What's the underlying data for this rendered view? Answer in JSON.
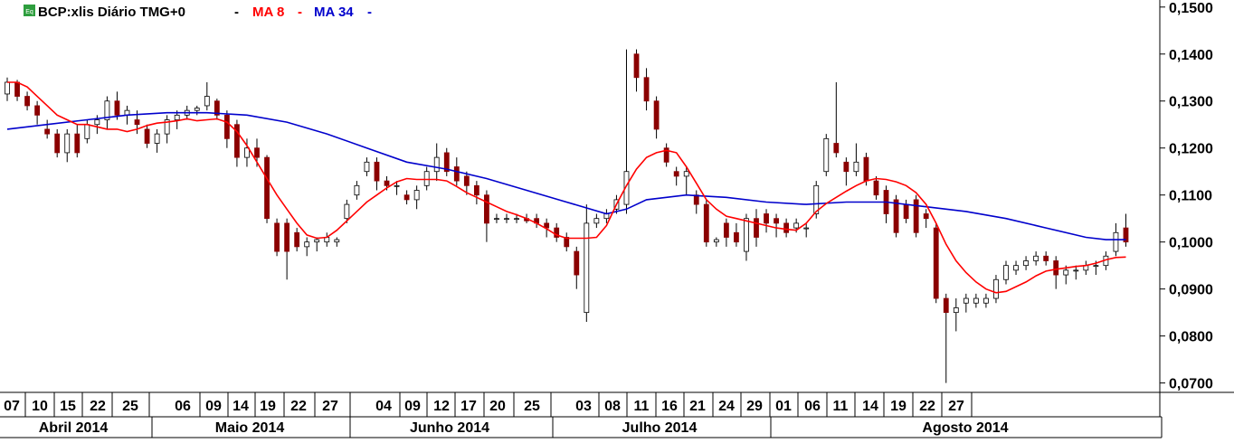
{
  "legend": {
    "badge": "Eq",
    "symbol": "BCP:xlis Diário TMG+0",
    "ma8": "MA 8",
    "ma34": "MA 34",
    "dash": "-"
  },
  "colors": {
    "bull_candle": "#1a8a1a",
    "bear_candle": "#8b0000",
    "ma8": "#ff0000",
    "ma34": "#0000cc",
    "axis": "#000000",
    "badge_bg": "#2e9e3e"
  },
  "chart_data": {
    "type": "candlestick",
    "title": "BCP:xlis Diário TMG+0",
    "ylim": [
      0.068,
      0.1515
    ],
    "y_ticks": [
      "0,0700",
      "0,0800",
      "0,0900",
      "0,1000",
      "0,1100",
      "0,1200",
      "0,1300",
      "0,1400",
      "0,1500"
    ],
    "x_ticks": [
      "07",
      "10",
      "15",
      "22",
      "25",
      "06",
      "09",
      "14",
      "19",
      "22",
      "27",
      "04",
      "09",
      "12",
      "17",
      "20",
      "25",
      "03",
      "08",
      "11",
      "16",
      "21",
      "24",
      "29",
      "01",
      "06",
      "11",
      "14",
      "19",
      "22",
      "27"
    ],
    "months": [
      "Abril 2014",
      "Maio 2014",
      "Junho 2014",
      "Julho 2014",
      "Agosto 2014"
    ],
    "ohlc": [
      [
        0.1315,
        0.135,
        0.13,
        0.134
      ],
      [
        0.134,
        0.1345,
        0.13,
        0.131
      ],
      [
        0.131,
        0.132,
        0.128,
        0.129
      ],
      [
        0.129,
        0.13,
        0.125,
        0.127
      ],
      [
        0.124,
        0.126,
        0.122,
        0.123
      ],
      [
        0.123,
        0.124,
        0.118,
        0.119
      ],
      [
        0.119,
        0.124,
        0.117,
        0.123
      ],
      [
        0.123,
        0.125,
        0.118,
        0.119
      ],
      [
        0.122,
        0.126,
        0.121,
        0.125
      ],
      [
        0.125,
        0.127,
        0.123,
        0.126
      ],
      [
        0.126,
        0.131,
        0.124,
        0.13
      ],
      [
        0.13,
        0.132,
        0.126,
        0.127
      ],
      [
        0.127,
        0.129,
        0.125,
        0.128
      ],
      [
        0.126,
        0.128,
        0.123,
        0.125
      ],
      [
        0.124,
        0.125,
        0.12,
        0.121
      ],
      [
        0.121,
        0.124,
        0.119,
        0.123
      ],
      [
        0.123,
        0.127,
        0.121,
        0.126
      ],
      [
        0.126,
        0.128,
        0.124,
        0.127
      ],
      [
        0.127,
        0.129,
        0.126,
        0.128
      ],
      [
        0.128,
        0.129,
        0.127,
        0.1285
      ],
      [
        0.129,
        0.134,
        0.128,
        0.131
      ],
      [
        0.13,
        0.1305,
        0.126,
        0.127
      ],
      [
        0.127,
        0.128,
        0.12,
        0.122
      ],
      [
        0.125,
        0.126,
        0.116,
        0.118
      ],
      [
        0.118,
        0.122,
        0.116,
        0.12
      ],
      [
        0.12,
        0.122,
        0.116,
        0.118
      ],
      [
        0.118,
        0.1185,
        0.104,
        0.105
      ],
      [
        0.104,
        0.105,
        0.097,
        0.098
      ],
      [
        0.104,
        0.105,
        0.092,
        0.098
      ],
      [
        0.102,
        0.103,
        0.098,
        0.099
      ],
      [
        0.099,
        0.101,
        0.097,
        0.1
      ],
      [
        0.1,
        0.101,
        0.098,
        0.1005
      ],
      [
        0.1,
        0.102,
        0.099,
        0.101
      ],
      [
        0.1,
        0.101,
        0.099,
        0.1005
      ],
      [
        0.105,
        0.109,
        0.104,
        0.108
      ],
      [
        0.11,
        0.113,
        0.109,
        0.112
      ],
      [
        0.115,
        0.118,
        0.114,
        0.117
      ],
      [
        0.117,
        0.118,
        0.111,
        0.113
      ],
      [
        0.113,
        0.114,
        0.111,
        0.112
      ],
      [
        0.112,
        0.113,
        0.11,
        0.112
      ],
      [
        0.11,
        0.111,
        0.108,
        0.109
      ],
      [
        0.109,
        0.112,
        0.107,
        0.111
      ],
      [
        0.112,
        0.116,
        0.111,
        0.115
      ],
      [
        0.115,
        0.121,
        0.113,
        0.118
      ],
      [
        0.119,
        0.12,
        0.114,
        0.115
      ],
      [
        0.116,
        0.118,
        0.112,
        0.113
      ],
      [
        0.114,
        0.115,
        0.11,
        0.112
      ],
      [
        0.112,
        0.113,
        0.108,
        0.11
      ],
      [
        0.11,
        0.111,
        0.1,
        0.104
      ],
      [
        0.105,
        0.106,
        0.104,
        0.105
      ],
      [
        0.105,
        0.106,
        0.104,
        0.105
      ],
      [
        0.105,
        0.106,
        0.104,
        0.105
      ],
      [
        0.105,
        0.106,
        0.104,
        0.1045
      ],
      [
        0.105,
        0.106,
        0.103,
        0.104
      ],
      [
        0.104,
        0.105,
        0.101,
        0.103
      ],
      [
        0.103,
        0.104,
        0.1,
        0.101
      ],
      [
        0.101,
        0.102,
        0.098,
        0.099
      ],
      [
        0.098,
        0.099,
        0.09,
        0.093
      ],
      [
        0.085,
        0.108,
        0.083,
        0.104
      ],
      [
        0.104,
        0.106,
        0.103,
        0.105
      ],
      [
        0.105,
        0.107,
        0.104,
        0.106
      ],
      [
        0.107,
        0.11,
        0.106,
        0.109
      ],
      [
        0.108,
        0.141,
        0.106,
        0.115
      ],
      [
        0.14,
        0.141,
        0.132,
        0.135
      ],
      [
        0.135,
        0.137,
        0.128,
        0.13
      ],
      [
        0.13,
        0.131,
        0.122,
        0.124
      ],
      [
        0.12,
        0.121,
        0.116,
        0.117
      ],
      [
        0.115,
        0.116,
        0.112,
        0.114
      ],
      [
        0.114,
        0.116,
        0.11,
        0.115
      ],
      [
        0.11,
        0.111,
        0.106,
        0.108
      ],
      [
        0.108,
        0.109,
        0.099,
        0.1
      ],
      [
        0.1,
        0.101,
        0.099,
        0.1005
      ],
      [
        0.104,
        0.105,
        0.099,
        0.101
      ],
      [
        0.102,
        0.104,
        0.099,
        0.1
      ],
      [
        0.098,
        0.106,
        0.096,
        0.105
      ],
      [
        0.105,
        0.107,
        0.099,
        0.101
      ],
      [
        0.106,
        0.107,
        0.102,
        0.104
      ],
      [
        0.105,
        0.106,
        0.101,
        0.104
      ],
      [
        0.104,
        0.105,
        0.101,
        0.102
      ],
      [
        0.103,
        0.105,
        0.102,
        0.104
      ],
      [
        0.103,
        0.104,
        0.101,
        0.103
      ],
      [
        0.106,
        0.113,
        0.105,
        0.112
      ],
      [
        0.115,
        0.123,
        0.114,
        0.122
      ],
      [
        0.121,
        0.134,
        0.118,
        0.119
      ],
      [
        0.117,
        0.118,
        0.112,
        0.115
      ],
      [
        0.115,
        0.121,
        0.114,
        0.117
      ],
      [
        0.118,
        0.119,
        0.112,
        0.113
      ],
      [
        0.113,
        0.114,
        0.109,
        0.11
      ],
      [
        0.111,
        0.112,
        0.104,
        0.106
      ],
      [
        0.109,
        0.11,
        0.101,
        0.102
      ],
      [
        0.108,
        0.109,
        0.104,
        0.105
      ],
      [
        0.109,
        0.11,
        0.101,
        0.102
      ],
      [
        0.106,
        0.107,
        0.103,
        0.105
      ],
      [
        0.103,
        0.104,
        0.087,
        0.088
      ],
      [
        0.088,
        0.089,
        0.07,
        0.085
      ],
      [
        0.085,
        0.088,
        0.081,
        0.086
      ],
      [
        0.087,
        0.089,
        0.085,
        0.088
      ],
      [
        0.087,
        0.089,
        0.086,
        0.088
      ],
      [
        0.087,
        0.089,
        0.086,
        0.088
      ],
      [
        0.088,
        0.093,
        0.087,
        0.092
      ],
      [
        0.092,
        0.096,
        0.091,
        0.095
      ],
      [
        0.094,
        0.096,
        0.093,
        0.095
      ],
      [
        0.095,
        0.097,
        0.094,
        0.096
      ],
      [
        0.096,
        0.098,
        0.095,
        0.097
      ],
      [
        0.097,
        0.098,
        0.095,
        0.096
      ],
      [
        0.096,
        0.097,
        0.09,
        0.093
      ],
      [
        0.093,
        0.095,
        0.091,
        0.094
      ],
      [
        0.094,
        0.095,
        0.092,
        0.094
      ],
      [
        0.094,
        0.096,
        0.093,
        0.095
      ],
      [
        0.095,
        0.096,
        0.093,
        0.095
      ],
      [
        0.095,
        0.098,
        0.094,
        0.097
      ],
      [
        0.098,
        0.104,
        0.097,
        0.102
      ],
      [
        0.103,
        0.106,
        0.099,
        0.1
      ]
    ],
    "ma8": [
      [
        0,
        0.134
      ],
      [
        1,
        0.134
      ],
      [
        2,
        0.133
      ],
      [
        3,
        0.131
      ],
      [
        4,
        0.129
      ],
      [
        5,
        0.127
      ],
      [
        6,
        0.126
      ],
      [
        7,
        0.125
      ],
      [
        8,
        0.125
      ],
      [
        9,
        0.1245
      ],
      [
        10,
        0.124
      ],
      [
        11,
        0.124
      ],
      [
        12,
        0.1235
      ],
      [
        13,
        0.124
      ],
      [
        14,
        0.1248
      ],
      [
        15,
        0.1253
      ],
      [
        16,
        0.1255
      ],
      [
        17,
        0.1258
      ],
      [
        18,
        0.1262
      ],
      [
        19,
        0.1258
      ],
      [
        20,
        0.126
      ],
      [
        21,
        0.1262
      ],
      [
        22,
        0.1255
      ],
      [
        23,
        0.1235
      ],
      [
        24,
        0.1205
      ],
      [
        25,
        0.117
      ],
      [
        26,
        0.1135
      ],
      [
        27,
        0.11
      ],
      [
        28,
        0.107
      ],
      [
        29,
        0.104
      ],
      [
        30,
        0.1015
      ],
      [
        31,
        0.1008
      ],
      [
        32,
        0.101
      ],
      [
        33,
        0.1025
      ],
      [
        34,
        0.1045
      ],
      [
        35,
        0.1065
      ],
      [
        36,
        0.1085
      ],
      [
        37,
        0.11
      ],
      [
        38,
        0.1115
      ],
      [
        39,
        0.1128
      ],
      [
        40,
        0.1135
      ],
      [
        41,
        0.1133
      ],
      [
        42,
        0.1133
      ],
      [
        43,
        0.1133
      ],
      [
        44,
        0.113
      ],
      [
        45,
        0.1118
      ],
      [
        46,
        0.1105
      ],
      [
        47,
        0.1095
      ],
      [
        48,
        0.1085
      ],
      [
        49,
        0.1075
      ],
      [
        50,
        0.1065
      ],
      [
        51,
        0.1058
      ],
      [
        52,
        0.105
      ],
      [
        53,
        0.104
      ],
      [
        54,
        0.1028
      ],
      [
        55,
        0.1015
      ],
      [
        56,
        0.1008
      ],
      [
        57,
        0.1008
      ],
      [
        58,
        0.1008
      ],
      [
        59,
        0.101
      ],
      [
        60,
        0.1035
      ],
      [
        61,
        0.108
      ],
      [
        62,
        0.112
      ],
      [
        63,
        0.1155
      ],
      [
        64,
        0.118
      ],
      [
        65,
        0.119
      ],
      [
        66,
        0.1195
      ],
      [
        67,
        0.119
      ],
      [
        68,
        0.116
      ],
      [
        69,
        0.1125
      ],
      [
        70,
        0.109
      ],
      [
        71,
        0.107
      ],
      [
        72,
        0.1055
      ],
      [
        73,
        0.105
      ],
      [
        74,
        0.1045
      ],
      [
        75,
        0.104
      ],
      [
        76,
        0.1035
      ],
      [
        77,
        0.103
      ],
      [
        78,
        0.1027
      ],
      [
        79,
        0.1025
      ],
      [
        80,
        0.104
      ],
      [
        81,
        0.1065
      ],
      [
        82,
        0.1082
      ],
      [
        83,
        0.1095
      ],
      [
        84,
        0.1108
      ],
      [
        85,
        0.112
      ],
      [
        86,
        0.113
      ],
      [
        87,
        0.1135
      ],
      [
        88,
        0.1133
      ],
      [
        89,
        0.1128
      ],
      [
        90,
        0.112
      ],
      [
        91,
        0.1105
      ],
      [
        92,
        0.108
      ],
      [
        93,
        0.104
      ],
      [
        94,
        0.0995
      ],
      [
        95,
        0.096
      ],
      [
        96,
        0.0935
      ],
      [
        97,
        0.0915
      ],
      [
        98,
        0.09
      ],
      [
        99,
        0.0892
      ],
      [
        100,
        0.0895
      ],
      [
        101,
        0.0905
      ],
      [
        102,
        0.0915
      ],
      [
        103,
        0.0928
      ],
      [
        104,
        0.0938
      ],
      [
        105,
        0.0942
      ],
      [
        106,
        0.0945
      ],
      [
        107,
        0.0948
      ],
      [
        108,
        0.095
      ],
      [
        109,
        0.0955
      ],
      [
        110,
        0.0962
      ],
      [
        111,
        0.0967
      ],
      [
        112,
        0.0968
      ]
    ],
    "ma34": [
      [
        0,
        0.124
      ],
      [
        4,
        0.125
      ],
      [
        8,
        0.126
      ],
      [
        12,
        0.127
      ],
      [
        16,
        0.1275
      ],
      [
        20,
        0.1275
      ],
      [
        24,
        0.127
      ],
      [
        28,
        0.1255
      ],
      [
        32,
        0.123
      ],
      [
        36,
        0.12
      ],
      [
        40,
        0.117
      ],
      [
        44,
        0.1155
      ],
      [
        48,
        0.1135
      ],
      [
        52,
        0.111
      ],
      [
        56,
        0.1085
      ],
      [
        60,
        0.106
      ],
      [
        62,
        0.107
      ],
      [
        64,
        0.109
      ],
      [
        68,
        0.11
      ],
      [
        72,
        0.1095
      ],
      [
        76,
        0.1085
      ],
      [
        80,
        0.108
      ],
      [
        84,
        0.1085
      ],
      [
        88,
        0.1085
      ],
      [
        92,
        0.1075
      ],
      [
        96,
        0.1065
      ],
      [
        100,
        0.105
      ],
      [
        104,
        0.103
      ],
      [
        108,
        0.101
      ],
      [
        110,
        0.1005
      ],
      [
        112,
        0.1005
      ]
    ]
  }
}
